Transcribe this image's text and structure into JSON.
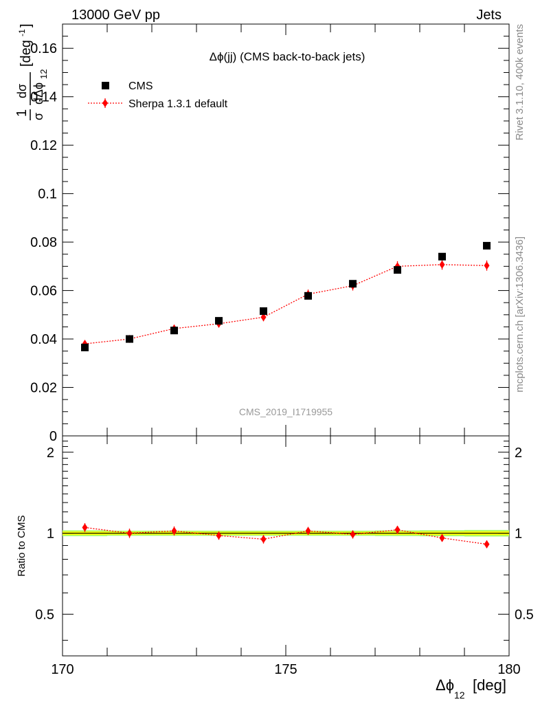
{
  "header": {
    "left": "13000 GeV pp",
    "right": "Jets"
  },
  "side_text": {
    "rivet": "Rivet 3.1.10,  400k events",
    "mcplots": "mcplots.cern.ch [arXiv:1306.3436]"
  },
  "watermark": "CMS_2019_I1719955",
  "colors": {
    "data": "#000000",
    "mc": "#ff0000",
    "band_inner": "#ffff00",
    "band_outer": "#aaff66"
  },
  "chart_data": [
    {
      "type": "scatter",
      "title": "Δϕ(jj) (CMS back-to-back jets)",
      "ylabel": "1/σ dσ/dΔϕ12 [deg⁻¹]",
      "xlim": [
        170,
        180
      ],
      "ylim": [
        0,
        0.17
      ],
      "y_ticks": [
        0,
        0.02,
        0.04,
        0.06,
        0.08,
        0.1,
        0.12,
        0.14,
        0.16
      ],
      "y_tick_labels": [
        "0",
        "0.02",
        "0.04",
        "0.06",
        "0.08",
        "0.1",
        "0.12",
        "0.14",
        "0.16"
      ],
      "legend_position": "top-left",
      "x": [
        170.5,
        171.5,
        172.5,
        173.5,
        174.5,
        175.5,
        176.5,
        177.5,
        178.5,
        179.5
      ],
      "series": [
        {
          "name": "CMS",
          "marker": "square",
          "values": [
            0.0365,
            0.04,
            0.0435,
            0.0475,
            0.0515,
            0.0578,
            0.0628,
            0.0685,
            0.074,
            0.0785
          ],
          "errors": [
            0.0008,
            0.0008,
            0.0008,
            0.0008,
            0.0009,
            0.0009,
            0.0009,
            0.001,
            0.0011,
            0.0011
          ]
        },
        {
          "name": "Sherpa 1.3.1 default",
          "marker": "diamond",
          "values": [
            0.038,
            0.04,
            0.0443,
            0.0463,
            0.049,
            0.0585,
            0.062,
            0.07,
            0.0707,
            0.0703
          ],
          "errors": [
            0.0015,
            0.0015,
            0.0016,
            0.0016,
            0.0017,
            0.0019,
            0.002,
            0.0021,
            0.0021,
            0.0021
          ]
        }
      ]
    },
    {
      "type": "scatter",
      "ylabel": "Ratio to CMS",
      "xlabel": "Δϕ12 [deg]",
      "xlim": [
        170,
        180
      ],
      "ylim": [
        0.35,
        2.3
      ],
      "x_ticks": [
        170,
        175,
        180
      ],
      "x_tick_labels": [
        "170",
        "175",
        "180"
      ],
      "y_ticks": [
        0.5,
        1,
        2
      ],
      "y_tick_labels": [
        "0.5",
        "1",
        "2"
      ],
      "x": [
        170.5,
        171.5,
        172.5,
        173.5,
        174.5,
        175.5,
        176.5,
        177.5,
        178.5,
        179.5
      ],
      "band": [
        0.025,
        0.022,
        0.022,
        0.022,
        0.022,
        0.022,
        0.022,
        0.024,
        0.026,
        0.028
      ],
      "series": [
        {
          "name": "Sherpa 1.3.1 default",
          "values": [
            1.05,
            1.0,
            1.02,
            0.98,
            0.95,
            1.02,
            0.99,
            1.03,
            0.96,
            0.91
          ],
          "errors": [
            0.04,
            0.04,
            0.04,
            0.035,
            0.035,
            0.035,
            0.035,
            0.035,
            0.03,
            0.03
          ]
        }
      ]
    }
  ]
}
